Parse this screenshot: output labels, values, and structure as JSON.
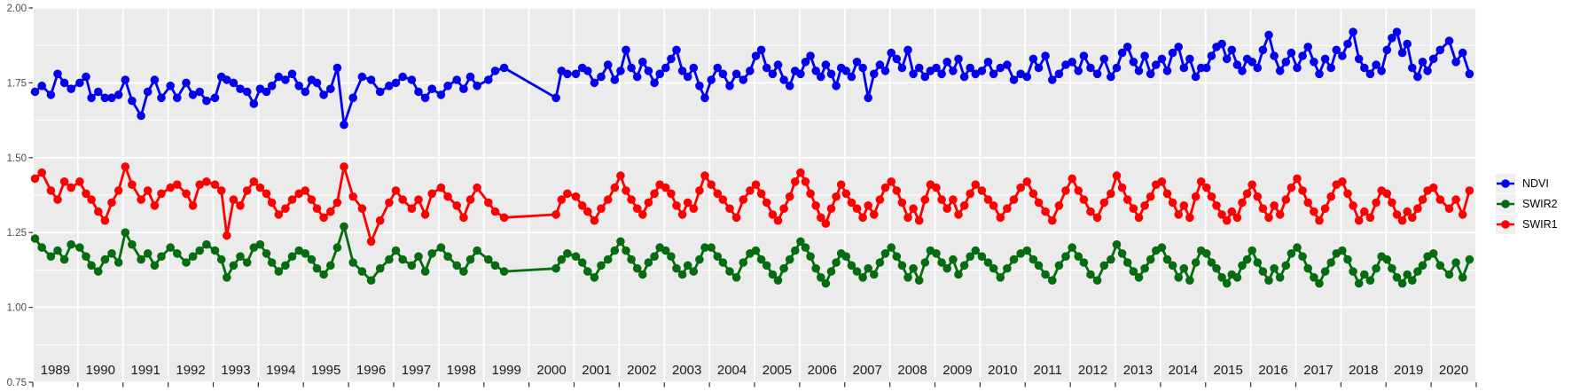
{
  "chart_data": {
    "type": "line",
    "title": "",
    "xlabel": "",
    "ylabel": "",
    "grid": "on",
    "legend_position": "right",
    "x_axis": {
      "range": [
        1989,
        2021
      ],
      "tick_labels": [
        "1989",
        "1990",
        "1991",
        "1992",
        "1993",
        "1994",
        "1995",
        "1996",
        "1997",
        "1998",
        "1999",
        "2000",
        "2001",
        "2002",
        "2003",
        "2004",
        "2005",
        "2006",
        "2007",
        "2008",
        "2009",
        "2010",
        "2011",
        "2012",
        "2013",
        "2014",
        "2015",
        "2016",
        "2017",
        "2018",
        "2019",
        "2020"
      ]
    },
    "y_axis": {
      "range": [
        0.75,
        2.0
      ],
      "tick_values": [
        2.0,
        1.75,
        1.5,
        1.25,
        1.0,
        0.75
      ],
      "tick_labels": [
        "2.00",
        "1.75",
        "1.50",
        "1.25",
        "1.00",
        "0.75"
      ],
      "minor_tick_values": [
        1.875,
        1.625,
        1.375,
        1.125,
        0.875
      ]
    },
    "legend": {
      "entries": [
        {
          "label": "NDVI",
          "color": "#0202F0"
        },
        {
          "label": "SWIR2",
          "color": "#066C10"
        },
        {
          "label": "SWIR1",
          "color": "#FF0000"
        }
      ]
    },
    "x": [
      1989.05,
      1989.2,
      1989.4,
      1989.55,
      1989.7,
      1989.85,
      1990.04,
      1990.18,
      1990.3,
      1990.45,
      1990.6,
      1990.75,
      1990.9,
      1991.05,
      1991.2,
      1991.4,
      1991.55,
      1991.7,
      1991.85,
      1992.05,
      1992.2,
      1992.4,
      1992.55,
      1992.7,
      1992.85,
      1993.04,
      1993.18,
      1993.3,
      1993.45,
      1993.6,
      1993.75,
      1993.9,
      1994.04,
      1994.18,
      1994.3,
      1994.45,
      1994.6,
      1994.75,
      1994.9,
      1995.04,
      1995.18,
      1995.3,
      1995.45,
      1995.6,
      1995.75,
      1995.9,
      1996.1,
      1996.3,
      1996.5,
      1996.7,
      1996.9,
      1997.05,
      1997.2,
      1997.4,
      1997.55,
      1997.7,
      1997.85,
      1998.05,
      1998.2,
      1998.4,
      1998.55,
      1998.7,
      1998.85,
      1999.1,
      1999.25,
      1999.45,
      2000.6,
      2000.72,
      2000.85,
      2001.04,
      2001.18,
      2001.3,
      2001.45,
      2001.6,
      2001.75,
      2001.9,
      2002.03,
      2002.15,
      2002.27,
      2002.4,
      2002.52,
      2002.65,
      2002.78,
      2002.9,
      2003.03,
      2003.15,
      2003.27,
      2003.4,
      2003.52,
      2003.65,
      2003.78,
      2003.9,
      2004.04,
      2004.18,
      2004.3,
      2004.45,
      2004.6,
      2004.75,
      2004.9,
      2005.03,
      2005.15,
      2005.27,
      2005.4,
      2005.52,
      2005.65,
      2005.78,
      2005.9,
      2006.02,
      2006.13,
      2006.24,
      2006.36,
      2006.47,
      2006.58,
      2006.7,
      2006.81,
      2006.92,
      2007.03,
      2007.15,
      2007.27,
      2007.4,
      2007.52,
      2007.65,
      2007.78,
      2007.9,
      2008.03,
      2008.15,
      2008.27,
      2008.4,
      2008.52,
      2008.65,
      2008.78,
      2008.9,
      2009.03,
      2009.15,
      2009.27,
      2009.4,
      2009.52,
      2009.65,
      2009.78,
      2009.9,
      2010.04,
      2010.18,
      2010.3,
      2010.45,
      2010.6,
      2010.75,
      2010.9,
      2011.04,
      2011.18,
      2011.3,
      2011.45,
      2011.6,
      2011.75,
      2011.9,
      2012.04,
      2012.18,
      2012.3,
      2012.45,
      2012.6,
      2012.75,
      2012.9,
      2013.03,
      2013.15,
      2013.27,
      2013.4,
      2013.52,
      2013.65,
      2013.78,
      2013.9,
      2014.03,
      2014.15,
      2014.27,
      2014.4,
      2014.52,
      2014.65,
      2014.78,
      2014.9,
      2015.02,
      2015.13,
      2015.24,
      2015.36,
      2015.47,
      2015.58,
      2015.7,
      2015.81,
      2015.92,
      2016.03,
      2016.15,
      2016.27,
      2016.4,
      2016.52,
      2016.65,
      2016.78,
      2016.9,
      2017.03,
      2017.15,
      2017.27,
      2017.4,
      2017.52,
      2017.65,
      2017.78,
      2017.9,
      2018.03,
      2018.15,
      2018.27,
      2018.4,
      2018.52,
      2018.65,
      2018.78,
      2018.9,
      2019.02,
      2019.13,
      2019.24,
      2019.36,
      2019.47,
      2019.58,
      2019.7,
      2019.81,
      2019.92,
      2020.05,
      2020.2,
      2020.4,
      2020.55,
      2020.7,
      2020.85
    ],
    "series": [
      {
        "name": "NDVI",
        "color": "#0202F0",
        "values": [
          1.72,
          1.74,
          1.71,
          1.78,
          1.75,
          1.73,
          1.75,
          1.77,
          1.7,
          1.72,
          1.7,
          1.7,
          1.71,
          1.76,
          1.69,
          1.64,
          1.72,
          1.76,
          1.7,
          1.74,
          1.7,
          1.75,
          1.71,
          1.72,
          1.69,
          1.7,
          1.77,
          1.76,
          1.75,
          1.73,
          1.72,
          1.68,
          1.73,
          1.72,
          1.74,
          1.77,
          1.76,
          1.78,
          1.74,
          1.72,
          1.76,
          1.75,
          1.71,
          1.73,
          1.8,
          1.61,
          1.7,
          1.77,
          1.76,
          1.72,
          1.74,
          1.75,
          1.77,
          1.76,
          1.72,
          1.7,
          1.73,
          1.71,
          1.74,
          1.76,
          1.73,
          1.77,
          1.74,
          1.76,
          1.79,
          1.8,
          1.7,
          1.79,
          1.78,
          1.78,
          1.8,
          1.79,
          1.75,
          1.77,
          1.81,
          1.76,
          1.79,
          1.86,
          1.8,
          1.77,
          1.82,
          1.79,
          1.75,
          1.78,
          1.8,
          1.83,
          1.86,
          1.79,
          1.77,
          1.8,
          1.74,
          1.7,
          1.76,
          1.8,
          1.78,
          1.74,
          1.78,
          1.76,
          1.79,
          1.84,
          1.86,
          1.8,
          1.78,
          1.81,
          1.76,
          1.74,
          1.79,
          1.78,
          1.82,
          1.84,
          1.79,
          1.77,
          1.81,
          1.78,
          1.74,
          1.8,
          1.79,
          1.77,
          1.82,
          1.8,
          1.7,
          1.78,
          1.81,
          1.79,
          1.85,
          1.83,
          1.8,
          1.86,
          1.78,
          1.8,
          1.77,
          1.79,
          1.8,
          1.78,
          1.82,
          1.79,
          1.83,
          1.77,
          1.8,
          1.78,
          1.79,
          1.82,
          1.78,
          1.8,
          1.81,
          1.76,
          1.78,
          1.77,
          1.83,
          1.8,
          1.84,
          1.76,
          1.78,
          1.81,
          1.82,
          1.79,
          1.84,
          1.8,
          1.78,
          1.83,
          1.77,
          1.8,
          1.85,
          1.87,
          1.82,
          1.79,
          1.84,
          1.78,
          1.81,
          1.83,
          1.79,
          1.85,
          1.87,
          1.8,
          1.83,
          1.77,
          1.8,
          1.8,
          1.84,
          1.87,
          1.88,
          1.83,
          1.86,
          1.81,
          1.79,
          1.83,
          1.82,
          1.8,
          1.86,
          1.91,
          1.84,
          1.79,
          1.82,
          1.85,
          1.8,
          1.84,
          1.87,
          1.82,
          1.78,
          1.83,
          1.8,
          1.86,
          1.84,
          1.88,
          1.92,
          1.83,
          1.8,
          1.78,
          1.81,
          1.79,
          1.86,
          1.9,
          1.92,
          1.85,
          1.88,
          1.8,
          1.77,
          1.82,
          1.79,
          1.83,
          1.86,
          1.89,
          1.82,
          1.85,
          1.78
        ]
      },
      {
        "name": "SWIR2",
        "color": "#066C10",
        "values": [
          1.23,
          1.2,
          1.17,
          1.19,
          1.16,
          1.21,
          1.2,
          1.17,
          1.14,
          1.12,
          1.16,
          1.18,
          1.15,
          1.25,
          1.21,
          1.16,
          1.18,
          1.14,
          1.17,
          1.2,
          1.18,
          1.15,
          1.17,
          1.19,
          1.21,
          1.19,
          1.16,
          1.1,
          1.14,
          1.17,
          1.15,
          1.2,
          1.21,
          1.18,
          1.15,
          1.12,
          1.14,
          1.17,
          1.19,
          1.18,
          1.16,
          1.13,
          1.11,
          1.14,
          1.2,
          1.27,
          1.15,
          1.12,
          1.09,
          1.13,
          1.16,
          1.19,
          1.16,
          1.14,
          1.17,
          1.12,
          1.18,
          1.2,
          1.17,
          1.14,
          1.12,
          1.16,
          1.19,
          1.16,
          1.14,
          1.12,
          1.13,
          1.16,
          1.18,
          1.17,
          1.15,
          1.12,
          1.1,
          1.14,
          1.16,
          1.19,
          1.22,
          1.19,
          1.16,
          1.13,
          1.11,
          1.15,
          1.17,
          1.2,
          1.19,
          1.17,
          1.13,
          1.11,
          1.14,
          1.12,
          1.16,
          1.2,
          1.2,
          1.17,
          1.15,
          1.12,
          1.1,
          1.15,
          1.18,
          1.19,
          1.16,
          1.14,
          1.11,
          1.09,
          1.13,
          1.16,
          1.19,
          1.22,
          1.2,
          1.17,
          1.13,
          1.1,
          1.08,
          1.12,
          1.15,
          1.18,
          1.17,
          1.14,
          1.12,
          1.1,
          1.13,
          1.11,
          1.15,
          1.18,
          1.2,
          1.17,
          1.14,
          1.1,
          1.13,
          1.09,
          1.15,
          1.19,
          1.18,
          1.15,
          1.13,
          1.16,
          1.11,
          1.14,
          1.17,
          1.19,
          1.17,
          1.15,
          1.13,
          1.1,
          1.13,
          1.16,
          1.18,
          1.19,
          1.16,
          1.14,
          1.11,
          1.09,
          1.14,
          1.17,
          1.2,
          1.17,
          1.15,
          1.11,
          1.09,
          1.14,
          1.16,
          1.21,
          1.18,
          1.15,
          1.12,
          1.1,
          1.13,
          1.16,
          1.19,
          1.2,
          1.16,
          1.14,
          1.1,
          1.13,
          1.09,
          1.15,
          1.19,
          1.18,
          1.15,
          1.13,
          1.1,
          1.08,
          1.11,
          1.1,
          1.14,
          1.16,
          1.19,
          1.15,
          1.12,
          1.09,
          1.13,
          1.1,
          1.14,
          1.18,
          1.2,
          1.17,
          1.13,
          1.1,
          1.08,
          1.12,
          1.15,
          1.18,
          1.19,
          1.16,
          1.12,
          1.08,
          1.11,
          1.09,
          1.13,
          1.17,
          1.16,
          1.13,
          1.1,
          1.08,
          1.11,
          1.09,
          1.12,
          1.14,
          1.17,
          1.18,
          1.14,
          1.11,
          1.15,
          1.1,
          1.16
        ]
      },
      {
        "name": "SWIR1",
        "color": "#FF0000",
        "values": [
          1.43,
          1.45,
          1.39,
          1.36,
          1.42,
          1.4,
          1.42,
          1.38,
          1.36,
          1.32,
          1.29,
          1.35,
          1.39,
          1.47,
          1.41,
          1.36,
          1.39,
          1.34,
          1.38,
          1.4,
          1.41,
          1.38,
          1.34,
          1.41,
          1.42,
          1.41,
          1.39,
          1.24,
          1.36,
          1.34,
          1.39,
          1.42,
          1.4,
          1.38,
          1.35,
          1.31,
          1.33,
          1.36,
          1.38,
          1.39,
          1.36,
          1.33,
          1.3,
          1.32,
          1.35,
          1.47,
          1.37,
          1.33,
          1.22,
          1.29,
          1.35,
          1.39,
          1.36,
          1.33,
          1.36,
          1.31,
          1.38,
          1.4,
          1.37,
          1.34,
          1.3,
          1.36,
          1.4,
          1.35,
          1.32,
          1.3,
          1.31,
          1.36,
          1.38,
          1.37,
          1.34,
          1.32,
          1.29,
          1.33,
          1.36,
          1.4,
          1.44,
          1.39,
          1.36,
          1.33,
          1.31,
          1.35,
          1.38,
          1.41,
          1.4,
          1.38,
          1.34,
          1.31,
          1.35,
          1.33,
          1.39,
          1.44,
          1.41,
          1.38,
          1.36,
          1.33,
          1.3,
          1.36,
          1.39,
          1.41,
          1.38,
          1.35,
          1.31,
          1.29,
          1.33,
          1.37,
          1.42,
          1.45,
          1.42,
          1.38,
          1.34,
          1.3,
          1.28,
          1.33,
          1.37,
          1.41,
          1.38,
          1.35,
          1.33,
          1.3,
          1.34,
          1.31,
          1.36,
          1.4,
          1.42,
          1.39,
          1.35,
          1.3,
          1.33,
          1.29,
          1.36,
          1.41,
          1.4,
          1.36,
          1.33,
          1.36,
          1.31,
          1.34,
          1.38,
          1.41,
          1.39,
          1.36,
          1.34,
          1.3,
          1.33,
          1.36,
          1.4,
          1.42,
          1.38,
          1.35,
          1.32,
          1.29,
          1.34,
          1.39,
          1.43,
          1.39,
          1.36,
          1.32,
          1.3,
          1.35,
          1.38,
          1.44,
          1.4,
          1.36,
          1.33,
          1.3,
          1.34,
          1.37,
          1.41,
          1.42,
          1.38,
          1.35,
          1.31,
          1.34,
          1.3,
          1.37,
          1.42,
          1.4,
          1.37,
          1.34,
          1.31,
          1.29,
          1.32,
          1.3,
          1.35,
          1.38,
          1.41,
          1.37,
          1.33,
          1.3,
          1.34,
          1.31,
          1.36,
          1.4,
          1.43,
          1.39,
          1.35,
          1.32,
          1.29,
          1.33,
          1.37,
          1.41,
          1.42,
          1.38,
          1.34,
          1.29,
          1.32,
          1.3,
          1.35,
          1.39,
          1.38,
          1.35,
          1.31,
          1.29,
          1.32,
          1.3,
          1.33,
          1.36,
          1.39,
          1.4,
          1.36,
          1.33,
          1.36,
          1.31,
          1.39
        ]
      }
    ]
  },
  "colors": {
    "page_bg": "#FFFFFF",
    "panel_bg": "#EBEBEB",
    "grid_major": "#FFFFFF",
    "grid_minor": "#FFFFFF",
    "axis_tick": "#333333",
    "y_label_text": "#4D4D4D",
    "year_label_text": "#1A1A1A",
    "legend_key_bg": "#F0F0F0",
    "legend_text": "#000000"
  }
}
